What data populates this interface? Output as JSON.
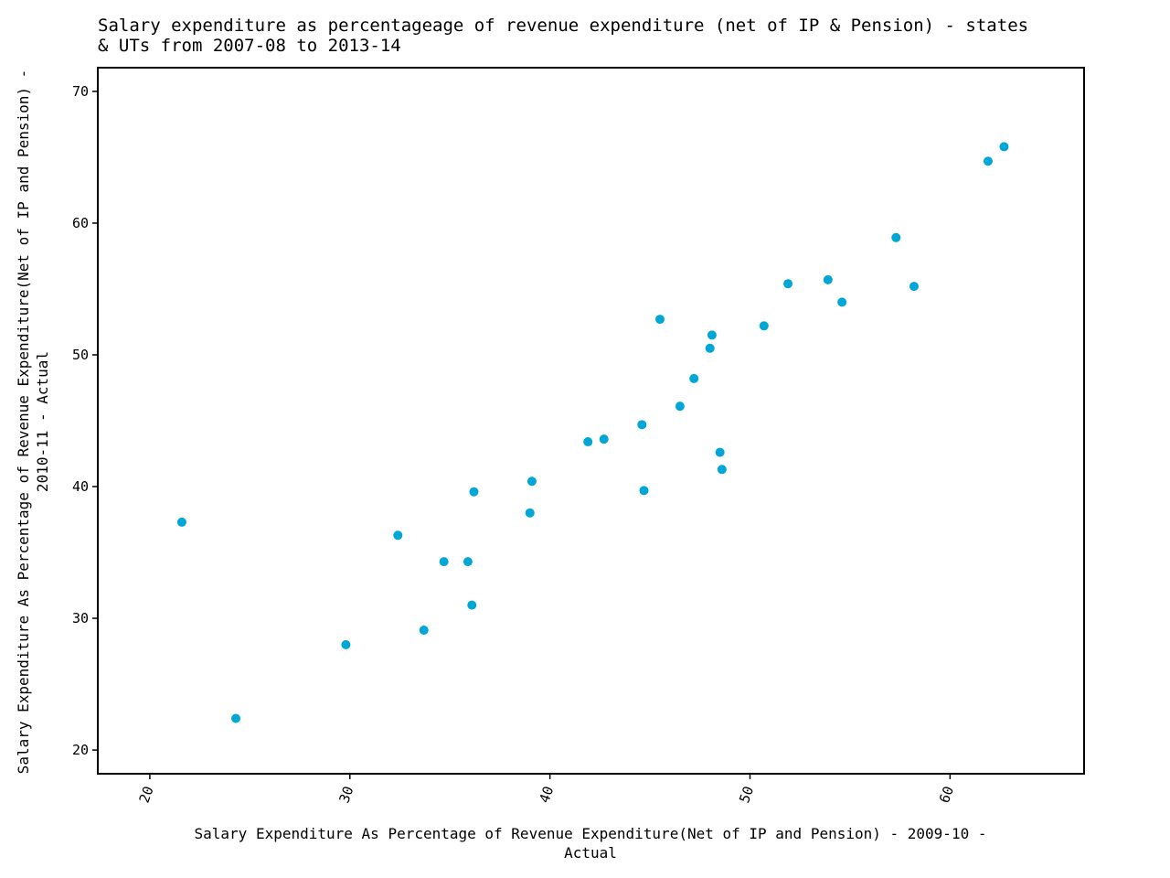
{
  "chart_data": {
    "type": "scatter",
    "title_lines": [
      "Salary expenditure as percentageage of revenue expenditure (net of IP & Pension) - states",
      "& UTs from 2007-08 to 2013-14"
    ],
    "xlabel_lines": [
      "Salary Expenditure As Percentage of Revenue Expenditure(Net of IP and Pension) - 2009-10 -",
      "Actual"
    ],
    "ylabel_lines": [
      "Salary Expenditure As Percentage of Revenue Expenditure(Net of IP and Pension) -",
      "2010-11 - Actual"
    ],
    "xlim": [
      17.4,
      66.7
    ],
    "ylim": [
      18.2,
      71.8
    ],
    "xticks": [
      20,
      30,
      40,
      50,
      60
    ],
    "yticks": [
      20,
      30,
      40,
      50,
      60,
      70
    ],
    "grid": false,
    "marker_color": "#00a6d6",
    "points": [
      {
        "x": 21.6,
        "y": 37.3
      },
      {
        "x": 24.3,
        "y": 22.4
      },
      {
        "x": 29.8,
        "y": 28.0
      },
      {
        "x": 32.4,
        "y": 36.3
      },
      {
        "x": 33.7,
        "y": 29.1
      },
      {
        "x": 34.7,
        "y": 34.3
      },
      {
        "x": 35.9,
        "y": 34.3
      },
      {
        "x": 36.1,
        "y": 31.0
      },
      {
        "x": 36.2,
        "y": 39.6
      },
      {
        "x": 39.0,
        "y": 38.0
      },
      {
        "x": 39.1,
        "y": 40.4
      },
      {
        "x": 41.9,
        "y": 43.4
      },
      {
        "x": 42.7,
        "y": 43.6
      },
      {
        "x": 44.6,
        "y": 44.7
      },
      {
        "x": 44.7,
        "y": 39.7
      },
      {
        "x": 45.5,
        "y": 52.7
      },
      {
        "x": 46.5,
        "y": 46.1
      },
      {
        "x": 47.2,
        "y": 48.2
      },
      {
        "x": 48.0,
        "y": 50.5
      },
      {
        "x": 48.1,
        "y": 51.5
      },
      {
        "x": 48.5,
        "y": 42.6
      },
      {
        "x": 48.6,
        "y": 41.3
      },
      {
        "x": 50.7,
        "y": 52.2
      },
      {
        "x": 51.9,
        "y": 55.4
      },
      {
        "x": 53.9,
        "y": 55.7
      },
      {
        "x": 54.6,
        "y": 54.0
      },
      {
        "x": 57.3,
        "y": 58.9
      },
      {
        "x": 58.2,
        "y": 55.2
      },
      {
        "x": 61.9,
        "y": 64.7
      },
      {
        "x": 62.7,
        "y": 65.8
      }
    ]
  }
}
